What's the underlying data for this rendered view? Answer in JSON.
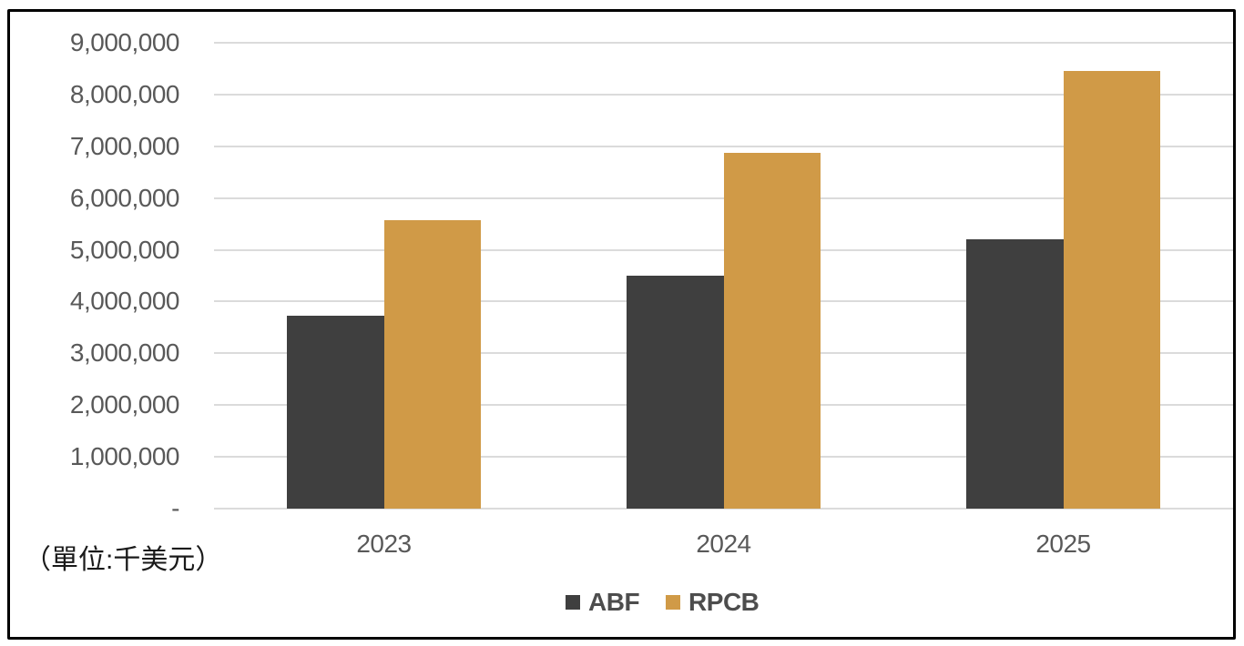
{
  "chart_data": {
    "type": "bar",
    "title": "",
    "categories": [
      "2023",
      "2024",
      "2025"
    ],
    "series": [
      {
        "name": "ABF",
        "color": "#3F3F3F",
        "values": [
          3730000,
          4500000,
          5210000
        ]
      },
      {
        "name": "RPCB",
        "color": "#D09A47",
        "values": [
          5570000,
          6870000,
          8450000
        ]
      }
    ],
    "unit_label": "（單位:千美元）",
    "ylim": [
      0,
      9000000
    ],
    "y_tick_interval": 1000000,
    "y_tick_labels_top_to_bottom": [
      "9,000,000",
      "8,000,000",
      "7,000,000",
      "6,000,000",
      "5,000,000",
      "4,000,000",
      "3,000,000",
      "2,000,000",
      "1,000,000",
      "-"
    ],
    "grid": true,
    "legend_position": "bottom"
  },
  "colors": {
    "background": "#FFFFFF",
    "frame_border": "#000000",
    "gridline": "#DBDBDB",
    "axis_text": "#595959",
    "unit_text": "#1A1A1A",
    "legend_text": "#4D4D4D"
  }
}
